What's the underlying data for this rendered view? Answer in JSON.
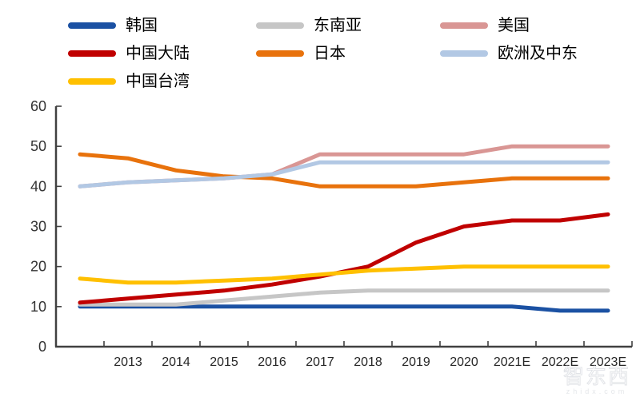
{
  "chart_data": {
    "type": "line",
    "title": "",
    "xlabel": "",
    "ylabel": "",
    "categories": [
      "",
      "2013",
      "2014",
      "2015",
      "2016",
      "2017",
      "2018",
      "2019",
      "2020",
      "2021E",
      "2022E",
      "2023E"
    ],
    "ylim": [
      0,
      60
    ],
    "yticks": [
      0,
      10,
      20,
      30,
      40,
      50,
      60
    ],
    "grid": false,
    "legend_position": "top-left",
    "legend_order": [
      "韩国",
      "东南亚",
      "美国",
      "中国大陆",
      "日本",
      "欧洲及中东",
      "中国台湾"
    ],
    "series": [
      {
        "name": "韩国",
        "color": "#1B51A3",
        "values": [
          10,
          10,
          10,
          10,
          10,
          10,
          10,
          10,
          10,
          10,
          9,
          9
        ]
      },
      {
        "name": "东南亚",
        "color": "#C6C6C6",
        "values": [
          10.5,
          10.5,
          10.5,
          11.5,
          12.5,
          13.5,
          14,
          14,
          14,
          14,
          14,
          14
        ]
      },
      {
        "name": "美国",
        "color": "#D99694",
        "values": [
          40,
          41,
          41.5,
          42,
          43,
          48,
          48,
          48,
          48,
          50,
          50,
          50
        ]
      },
      {
        "name": "中国大陆",
        "color": "#C00000",
        "values": [
          11,
          12,
          13,
          14,
          15.5,
          17.5,
          20,
          26,
          30,
          31.5,
          31.5,
          33
        ]
      },
      {
        "name": "日本",
        "color": "#E8720C",
        "values": [
          48,
          47,
          44,
          42.5,
          42,
          40,
          40,
          40,
          41,
          42,
          42,
          42
        ]
      },
      {
        "name": "欧洲及中东",
        "color": "#B2C8E4",
        "values": [
          40,
          41,
          41.5,
          42,
          43,
          46,
          46,
          46,
          46,
          46,
          46,
          46
        ]
      },
      {
        "name": "中国台湾",
        "color": "#FFC000",
        "values": [
          17,
          16,
          16,
          16.5,
          17,
          18,
          19,
          19.5,
          20,
          20,
          20,
          20
        ]
      }
    ],
    "axis_color": "#404040"
  },
  "watermark": {
    "logo": "智东西",
    "url": "zhidx.com"
  }
}
